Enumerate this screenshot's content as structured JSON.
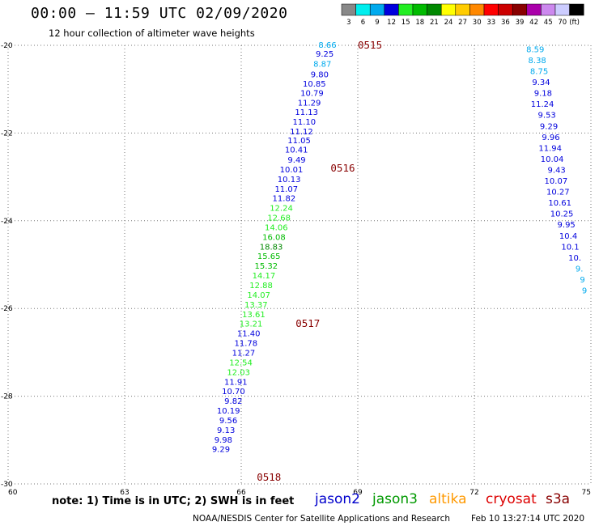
{
  "header": {
    "title": "00:00 – 11:59 UTC 02/09/2020",
    "subtitle": "12 hour collection of altimeter wave heights"
  },
  "legend": {
    "unit": "(ft)",
    "bins": [
      {
        "label": "3",
        "color": "#888888"
      },
      {
        "label": "6",
        "color": "#00eeee"
      },
      {
        "label": "9",
        "color": "#00aaee"
      },
      {
        "label": "12",
        "color": "#0000dd"
      },
      {
        "label": "15",
        "color": "#22ee22"
      },
      {
        "label": "18",
        "color": "#00bb00"
      },
      {
        "label": "21",
        "color": "#008800"
      },
      {
        "label": "24",
        "color": "#ffff00"
      },
      {
        "label": "27",
        "color": "#ffcc00"
      },
      {
        "label": "30",
        "color": "#ff8800"
      },
      {
        "label": "33",
        "color": "#ff0000"
      },
      {
        "label": "36",
        "color": "#cc0000"
      },
      {
        "label": "39",
        "color": "#880000"
      },
      {
        "label": "42",
        "color": "#aa00aa"
      },
      {
        "label": "45",
        "color": "#cc88ee"
      },
      {
        "label": "70",
        "color": "#ccccff"
      },
      {
        "label": "",
        "color": "#000000"
      }
    ]
  },
  "note": "note: 1) Time is in UTC; 2) SWH is in feet",
  "satellites": [
    {
      "name": "jason2",
      "color": "#0000cc"
    },
    {
      "name": "jason3",
      "color": "#009900"
    },
    {
      "name": "altika",
      "color": "#ff9900"
    },
    {
      "name": "cryosat",
      "color": "#dd0000"
    },
    {
      "name": "s3a",
      "color": "#880000"
    }
  ],
  "footer": {
    "credit": "NOAA/NESDIS Center for Satellite Applications and Research",
    "generated": "Feb 10 13:27:14 UTC 2020"
  },
  "chart_data": {
    "type": "scatter",
    "xlim": [
      60,
      75
    ],
    "ylim": [
      -30,
      -20
    ],
    "x_ticks": [
      "60",
      "63",
      "66",
      "69",
      "72",
      "75"
    ],
    "x_tick_values": [
      60,
      63,
      66,
      69,
      72,
      75
    ],
    "y_ticks": [
      "-20",
      "-22",
      "-24",
      "-26",
      "-28",
      "-30"
    ],
    "y_tick_values": [
      -20,
      -22,
      -24,
      -26,
      -28,
      -30
    ],
    "grid": true,
    "color_scale": [
      {
        "max": 3,
        "color": "#888888"
      },
      {
        "max": 6,
        "color": "#00eeee"
      },
      {
        "max": 9,
        "color": "#00aaee"
      },
      {
        "max": 12,
        "color": "#0000dd"
      },
      {
        "max": 15,
        "color": "#22ee22"
      },
      {
        "max": 18,
        "color": "#00bb00"
      },
      {
        "max": 21,
        "color": "#008800"
      }
    ],
    "time_labels": [
      {
        "text": "0515",
        "lon": 69.0,
        "lat": -20.0,
        "color": "#880000"
      },
      {
        "text": "0516",
        "lon": 68.3,
        "lat": -22.8,
        "color": "#880000"
      },
      {
        "text": "0517",
        "lon": 67.4,
        "lat": -26.35,
        "color": "#880000"
      },
      {
        "text": "0518",
        "lon": 66.4,
        "lat": -29.85,
        "color": "#880000"
      }
    ],
    "series": [
      {
        "name": "track-1",
        "points": [
          {
            "lon": 68.45,
            "lat": -20.0,
            "v": "8.66"
          },
          {
            "lon": 68.38,
            "lat": -20.2,
            "v": "9.25"
          },
          {
            "lon": 68.32,
            "lat": -20.43,
            "v": "8.87"
          },
          {
            "lon": 68.25,
            "lat": -20.67,
            "v": "9.80"
          },
          {
            "lon": 68.18,
            "lat": -20.89,
            "v": "10.85"
          },
          {
            "lon": 68.12,
            "lat": -21.1,
            "v": "10.79"
          },
          {
            "lon": 68.05,
            "lat": -21.32,
            "v": "11.29"
          },
          {
            "lon": 67.98,
            "lat": -21.53,
            "v": "11.13"
          },
          {
            "lon": 67.92,
            "lat": -21.75,
            "v": "11.10"
          },
          {
            "lon": 67.85,
            "lat": -21.97,
            "v": "11.12"
          },
          {
            "lon": 67.79,
            "lat": -22.18,
            "v": "11.05"
          },
          {
            "lon": 67.72,
            "lat": -22.39,
            "v": "10.41"
          },
          {
            "lon": 67.66,
            "lat": -22.62,
            "v": "9.49"
          },
          {
            "lon": 67.59,
            "lat": -22.84,
            "v": "10.01"
          },
          {
            "lon": 67.53,
            "lat": -23.06,
            "v": "10.13"
          },
          {
            "lon": 67.46,
            "lat": -23.28,
            "v": "11.07"
          },
          {
            "lon": 67.4,
            "lat": -23.5,
            "v": "11.82"
          },
          {
            "lon": 67.33,
            "lat": -23.72,
            "v": "12.24"
          },
          {
            "lon": 67.27,
            "lat": -23.94,
            "v": "12.68"
          },
          {
            "lon": 67.2,
            "lat": -24.16,
            "v": "14.06"
          },
          {
            "lon": 67.14,
            "lat": -24.38,
            "v": "16.08"
          },
          {
            "lon": 67.07,
            "lat": -24.6,
            "v": "18.83"
          },
          {
            "lon": 67.01,
            "lat": -24.82,
            "v": "15.65"
          },
          {
            "lon": 66.94,
            "lat": -25.04,
            "v": "15.32"
          },
          {
            "lon": 66.88,
            "lat": -25.26,
            "v": "14.17"
          },
          {
            "lon": 66.81,
            "lat": -25.48,
            "v": "12.88"
          },
          {
            "lon": 66.75,
            "lat": -25.7,
            "v": "14.07"
          },
          {
            "lon": 66.68,
            "lat": -25.92,
            "v": "13.37"
          },
          {
            "lon": 66.62,
            "lat": -26.14,
            "v": "13.61"
          },
          {
            "lon": 66.55,
            "lat": -26.36,
            "v": "13.21"
          },
          {
            "lon": 66.49,
            "lat": -26.58,
            "v": "11.40"
          },
          {
            "lon": 66.42,
            "lat": -26.8,
            "v": "11.78"
          },
          {
            "lon": 66.36,
            "lat": -27.02,
            "v": "11.27"
          },
          {
            "lon": 66.29,
            "lat": -27.24,
            "v": "12.54"
          },
          {
            "lon": 66.23,
            "lat": -27.46,
            "v": "12.03"
          },
          {
            "lon": 66.16,
            "lat": -27.68,
            "v": "11.91"
          },
          {
            "lon": 66.1,
            "lat": -27.9,
            "v": "10.70"
          },
          {
            "lon": 66.03,
            "lat": -28.12,
            "v": "9.82"
          },
          {
            "lon": 65.97,
            "lat": -28.34,
            "v": "10.19"
          },
          {
            "lon": 65.9,
            "lat": -28.56,
            "v": "9.56"
          },
          {
            "lon": 65.84,
            "lat": -28.78,
            "v": "9.13"
          },
          {
            "lon": 65.77,
            "lat": -29.0,
            "v": "9.98"
          },
          {
            "lon": 65.71,
            "lat": -29.22,
            "v": "9.29"
          }
        ]
      },
      {
        "name": "track-2",
        "points": [
          {
            "lon": 73.8,
            "lat": -20.1,
            "v": "8.59"
          },
          {
            "lon": 73.85,
            "lat": -20.35,
            "v": "8.38"
          },
          {
            "lon": 73.9,
            "lat": -20.6,
            "v": "8.75"
          },
          {
            "lon": 73.95,
            "lat": -20.85,
            "v": "9.34"
          },
          {
            "lon": 74.0,
            "lat": -21.1,
            "v": "9.18"
          },
          {
            "lon": 74.05,
            "lat": -21.35,
            "v": "11.24"
          },
          {
            "lon": 74.1,
            "lat": -21.6,
            "v": "9.53"
          },
          {
            "lon": 74.15,
            "lat": -21.85,
            "v": "9.29"
          },
          {
            "lon": 74.2,
            "lat": -22.1,
            "v": "9.96"
          },
          {
            "lon": 74.25,
            "lat": -22.35,
            "v": "11.94"
          },
          {
            "lon": 74.3,
            "lat": -22.6,
            "v": "10.04"
          },
          {
            "lon": 74.35,
            "lat": -22.85,
            "v": "9.43"
          },
          {
            "lon": 74.4,
            "lat": -23.1,
            "v": "10.07"
          },
          {
            "lon": 74.45,
            "lat": -23.35,
            "v": "10.27"
          },
          {
            "lon": 74.5,
            "lat": -23.6,
            "v": "10.61"
          },
          {
            "lon": 74.55,
            "lat": -23.85,
            "v": "10.25"
          },
          {
            "lon": 74.6,
            "lat": -24.1,
            "v": "9.95"
          },
          {
            "lon": 74.65,
            "lat": -24.35,
            "v": "10.4"
          },
          {
            "lon": 74.7,
            "lat": -24.6,
            "v": "10.1"
          },
          {
            "lon": 74.75,
            "lat": -24.85,
            "v": "10."
          },
          {
            "lon": 74.8,
            "lat": -25.1,
            "v": "9."
          },
          {
            "lon": 74.85,
            "lat": -25.35,
            "v": "9"
          },
          {
            "lon": 74.9,
            "lat": -25.6,
            "v": "9"
          }
        ]
      }
    ]
  }
}
